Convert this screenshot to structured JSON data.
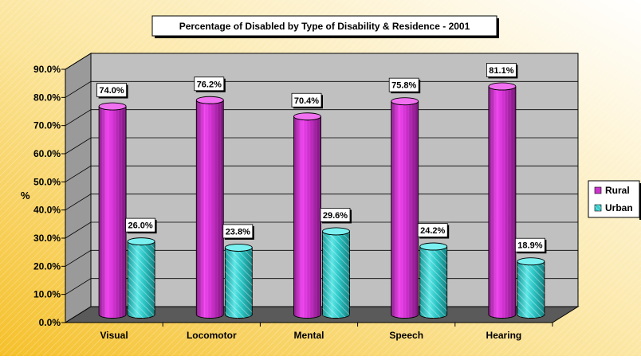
{
  "chart_data": {
    "type": "bar",
    "title": "Percentage of Disabled by Type of Disability & Residence - 2001",
    "ylabel": "%",
    "xlabel": "",
    "categories": [
      "Visual",
      "Locomotor",
      "Mental",
      "Speech",
      "Hearing"
    ],
    "series": [
      {
        "name": "Rural",
        "values": [
          74.0,
          76.2,
          70.4,
          75.8,
          81.1
        ],
        "labels": [
          "74.0%",
          "76.2%",
          "70.4%",
          "75.8%",
          "81.1%"
        ],
        "color": "#cc33cc"
      },
      {
        "name": "Urban",
        "values": [
          26.0,
          23.8,
          29.6,
          24.2,
          18.9
        ],
        "labels": [
          "26.0%",
          "23.8%",
          "29.6%",
          "24.2%",
          "18.9%"
        ],
        "color": "#33cccc"
      }
    ],
    "ylim": [
      0,
      90
    ],
    "yticks": [
      "0.0%",
      "10.0%",
      "20.0%",
      "30.0%",
      "40.0%",
      "50.0%",
      "60.0%",
      "70.0%",
      "80.0%",
      "90.0%"
    ],
    "grid": true,
    "legend_position": "right",
    "style": "3d-cylinder"
  }
}
